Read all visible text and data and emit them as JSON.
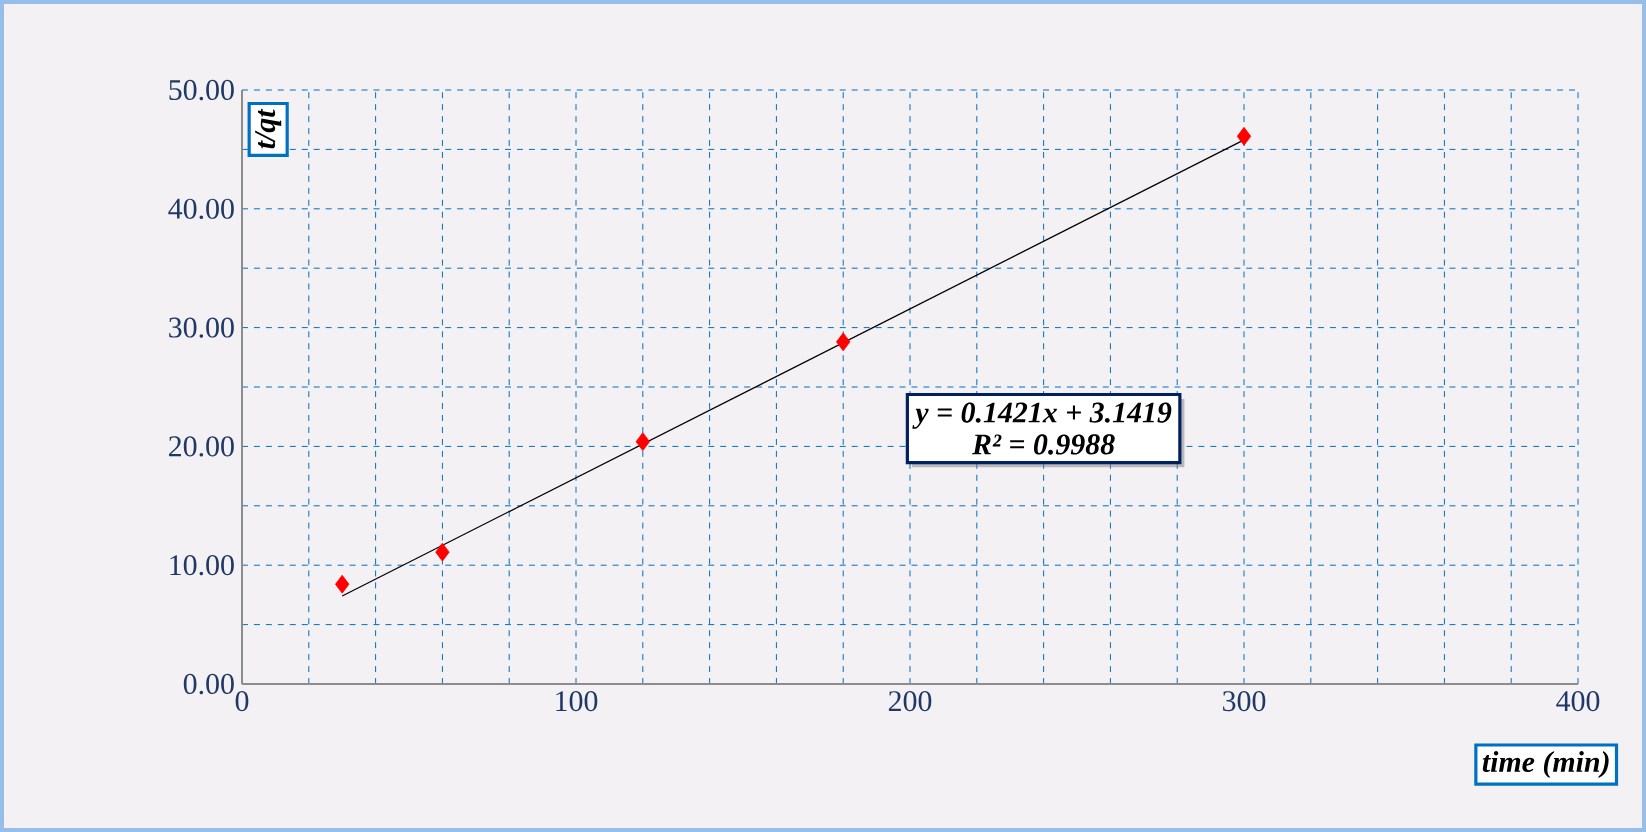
{
  "chart_data": {
    "type": "scatter",
    "xlabel": "time (min)",
    "ylabel": "t/qt",
    "xlim": [
      0,
      400
    ],
    "ylim": [
      0,
      50
    ],
    "xticks": [
      0,
      {
        "value": 20,
        "label": null
      },
      {
        "value": 40,
        "label": null
      },
      {
        "value": 60,
        "label": null
      },
      {
        "value": 80,
        "label": null
      },
      100,
      {
        "value": 120,
        "label": null
      },
      {
        "value": 140,
        "label": null
      },
      {
        "value": 160,
        "label": null
      },
      {
        "value": 180,
        "label": null
      },
      200,
      {
        "value": 220,
        "label": null
      },
      {
        "value": 240,
        "label": null
      },
      {
        "value": 260,
        "label": null
      },
      {
        "value": 280,
        "label": null
      },
      300,
      {
        "value": 320,
        "label": null
      },
      {
        "value": 340,
        "label": null
      },
      {
        "value": 360,
        "label": null
      },
      {
        "value": 380,
        "label": null
      },
      400
    ],
    "yticks": [
      {
        "value": 0,
        "label": "0.00"
      },
      {
        "value": 5,
        "label": null
      },
      {
        "value": 10,
        "label": "10.00"
      },
      {
        "value": 15,
        "label": null
      },
      {
        "value": 20,
        "label": "20.00"
      },
      {
        "value": 25,
        "label": null
      },
      {
        "value": 30,
        "label": "30.00"
      },
      {
        "value": 35,
        "label": null
      },
      {
        "value": 40,
        "label": "40.00"
      },
      {
        "value": 45,
        "label": null
      },
      {
        "value": 50,
        "label": "50.00"
      }
    ],
    "grid": true,
    "series": [
      {
        "color": "#ff0000",
        "marker": "diamond",
        "x": [
          30,
          60,
          120,
          180,
          300
        ],
        "values": [
          8.4,
          11.1,
          20.4,
          28.8,
          46.1
        ]
      },
      {
        "type": "line",
        "color": "#000000",
        "marker": "none",
        "x": [
          30,
          300
        ],
        "values": [
          7.4,
          45.8
        ]
      }
    ],
    "annotations": [
      "y = 0.1421x + 3.1419",
      "R² = 0.9988"
    ]
  }
}
